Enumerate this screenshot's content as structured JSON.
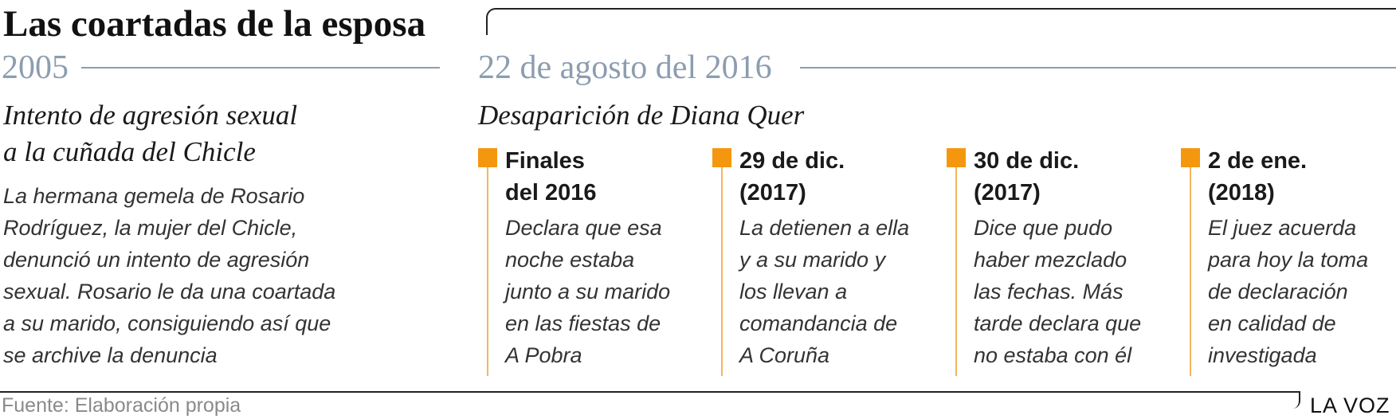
{
  "title": "Las coartadas de la esposa",
  "sections": [
    {
      "year": "2005",
      "heading_lines": [
        "Intento de agresión sexual",
        "a la cuñada del Chicle"
      ],
      "body_lines": [
        "La hermana gemela de Rosario",
        "Rodríguez, la mujer del Chicle,",
        "denunció un intento de agresión",
        "sexual. Rosario le da una coartada",
        "a su marido, consiguiendo así que",
        "se archive la denuncia"
      ]
    },
    {
      "year": "22 de agosto del 2016",
      "heading_lines": [
        "Desaparición de Diana Quer"
      ],
      "events": [
        {
          "date_lines": [
            "Finales",
            "del 2016"
          ],
          "desc_lines": [
            "Declara que esa",
            "noche estaba",
            "junto a su marido",
            "en las fiestas de",
            "A Pobra"
          ]
        },
        {
          "date_lines": [
            "29 de dic.",
            "(2017)"
          ],
          "desc_lines": [
            "La detienen a ella",
            "y a su marido y",
            "los llevan a",
            "comandancia de",
            "A Coruña"
          ]
        },
        {
          "date_lines": [
            "30 de dic.",
            "(2017)"
          ],
          "desc_lines": [
            "Dice que pudo",
            "haber mezclado",
            "las fechas. Más",
            "tarde declara que",
            "no estaba con él"
          ]
        },
        {
          "date_lines": [
            "2 de ene.",
            "(2018)"
          ],
          "desc_lines": [
            "El juez acuerda",
            "para hoy la toma",
            "de declaración",
            "en calidad de",
            "investigada"
          ]
        }
      ]
    }
  ],
  "footer": {
    "source": "Fuente: Elaboración propia",
    "brand": "LA VOZ"
  },
  "colors": {
    "marker": "#f4970f",
    "stem": "#f4b65c",
    "year": "#8c9db0"
  }
}
